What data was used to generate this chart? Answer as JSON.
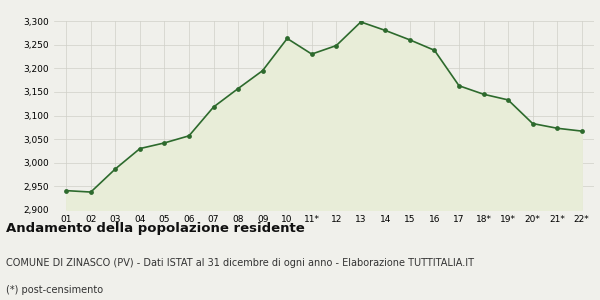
{
  "x_labels": [
    "01",
    "02",
    "03",
    "04",
    "05",
    "06",
    "07",
    "08",
    "09",
    "10",
    "11*",
    "12",
    "13",
    "14",
    "15",
    "16",
    "17",
    "18*",
    "19*",
    "20*",
    "21*",
    "22*"
  ],
  "values": [
    2941,
    2938,
    2987,
    3030,
    3042,
    3057,
    3118,
    3157,
    3195,
    3263,
    3230,
    3248,
    3298,
    3280,
    3260,
    3238,
    3163,
    3145,
    3133,
    3083,
    3073,
    3067
  ],
  "line_color": "#2d6a2d",
  "fill_color": "#e8edd8",
  "marker_color": "#2d6a2d",
  "bg_color": "#f0f0eb",
  "grid_color": "#d0d0c8",
  "ylim": [
    2900,
    3300
  ],
  "yticks": [
    2900,
    2950,
    3000,
    3050,
    3100,
    3150,
    3200,
    3250,
    3300
  ],
  "title": "Andamento della popolazione residente",
  "subtitle": "COMUNE DI ZINASCO (PV) - Dati ISTAT al 31 dicembre di ogni anno - Elaborazione TUTTITALIA.IT",
  "footnote": "(*) post-censimento",
  "title_fontsize": 9.5,
  "subtitle_fontsize": 7,
  "footnote_fontsize": 7,
  "tick_fontsize": 6.5
}
